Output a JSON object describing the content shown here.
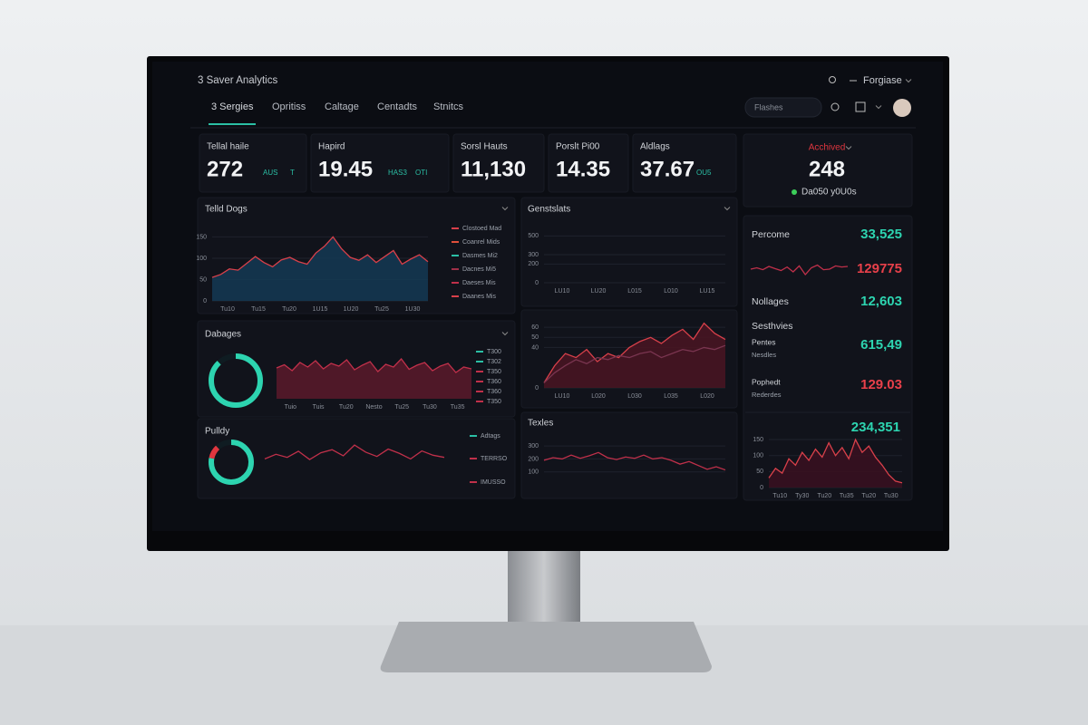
{
  "header": {
    "title": "3 Saver Analytics",
    "user_menu": "Forgiase",
    "search_placeholder": "Flashes"
  },
  "nav": {
    "tabs": [
      "3 Sergies",
      "Opritiss",
      "Caltage",
      "Centadts",
      "Stnitcs"
    ]
  },
  "kpis": [
    {
      "label": "Tellal haile",
      "value": "272",
      "notes": [
        "AUS",
        "T"
      ]
    },
    {
      "label": "Hapird",
      "value": "19.45",
      "notes": [
        "HAS3",
        "OTI"
      ]
    },
    {
      "label": "Sorsl Hauts",
      "value": "11,130",
      "notes": []
    },
    {
      "label": "Porslt Pi00",
      "value": "14.35",
      "notes": []
    },
    {
      "label": "Aldlags",
      "value": "37.67",
      "notes": [
        "OU5"
      ]
    }
  ],
  "highlight": {
    "label": "Acchived",
    "value": "248",
    "note": "Da050 y0U0s"
  },
  "panels": {
    "telld": {
      "title": "Telld Dogs",
      "ylim": [
        0,
        170
      ],
      "yticks": [
        150,
        100,
        50,
        0
      ],
      "xlabels": [
        "Tu10",
        "Tu15",
        "Tu20",
        "1U15",
        "1U20",
        "Tu25",
        "1U30"
      ],
      "series": [
        {
          "color": "#d8404a",
          "fill": "#143954",
          "values": [
            55,
            62,
            75,
            72,
            88,
            104,
            90,
            80,
            96,
            102,
            92,
            86,
            112,
            128,
            150,
            122,
            102,
            95,
            108,
            90,
            104,
            118,
            86,
            98,
            108,
            92
          ]
        }
      ],
      "legend": [
        {
          "name": "Clostoed Mad",
          "color": "#d8404a"
        },
        {
          "name": "Coanrel Mids",
          "color": "#e0503a"
        },
        {
          "name": "Dasmes Mi2",
          "color": "#2bbfa5"
        },
        {
          "name": "Dacnes Mi5",
          "color": "#a03048"
        },
        {
          "name": "Daeses Mis",
          "color": "#c0304a"
        },
        {
          "name": "Daanes Mis",
          "color": "#d8404a"
        }
      ]
    },
    "dabages": {
      "title": "Dabages",
      "donut": {
        "values": [
          88,
          12
        ],
        "colors": [
          "#2dd4b0",
          "#0f1c22"
        ]
      },
      "ylim": [
        0,
        100
      ],
      "series": [
        {
          "color": "#c0304a",
          "fill": "#5a1a2a",
          "values": [
            68,
            75,
            62,
            80,
            70,
            84,
            66,
            78,
            72,
            86,
            64,
            74,
            82,
            60,
            76,
            70,
            88,
            65,
            74,
            80,
            62,
            72,
            78,
            58,
            70,
            66
          ]
        }
      ],
      "xlabels": [
        "Tuio",
        "Tuis",
        "Tu20",
        "Nesto",
        "Tu25",
        "Tu30",
        "Tu35"
      ],
      "legend": [
        {
          "name": "T300",
          "color": "#2bbfa5"
        },
        {
          "name": "T302",
          "color": "#2bbfa5"
        },
        {
          "name": "T350",
          "color": "#c0304a"
        },
        {
          "name": "T360",
          "color": "#c0304a"
        },
        {
          "name": "T360",
          "color": "#c0304a"
        },
        {
          "name": "T350",
          "color": "#c0304a"
        }
      ]
    },
    "pulldy": {
      "title": "Pulldy",
      "donut": {
        "values": [
          78,
          10,
          12
        ],
        "colors": [
          "#2dd4b0",
          "#e0363f",
          "#0f1c22"
        ]
      },
      "ylim": [
        0,
        100
      ],
      "series": [
        {
          "color": "#c0304a",
          "values": [
            40,
            55,
            45,
            65,
            38,
            60,
            70,
            50,
            85,
            62,
            48,
            72,
            58,
            40,
            66,
            52,
            45
          ]
        }
      ],
      "legend": [
        {
          "name": "Adtags",
          "color": "#2bbfa5"
        },
        {
          "name": "TERRSO",
          "color": "#c0304a"
        },
        {
          "name": "IMUSSO",
          "color": "#c0304a"
        }
      ]
    },
    "genst": {
      "title": "Genstslats",
      "ylim": [
        0,
        600
      ],
      "yticks": [
        500,
        300,
        200,
        0
      ],
      "xlabels": [
        "LU10",
        "LU20",
        "L015",
        "L010",
        "LU15"
      ],
      "series": []
    },
    "mid": {
      "ylim": [
        0,
        70
      ],
      "yticks": [
        60,
        50,
        40,
        0
      ],
      "xlabels": [
        "LU10",
        "L020",
        "L030",
        "L035",
        "L020"
      ],
      "series": [
        {
          "color": "#d8404a",
          "fill": "#4a1522",
          "values": [
            5,
            22,
            34,
            30,
            38,
            26,
            34,
            30,
            40,
            46,
            50,
            44,
            52,
            58,
            48,
            64,
            54,
            48
          ]
        },
        {
          "color": "#7a3550",
          "values": [
            5,
            15,
            22,
            28,
            24,
            30,
            28,
            32,
            30,
            34,
            36,
            30,
            34,
            38,
            36,
            40,
            38,
            42
          ]
        }
      ]
    },
    "texles": {
      "title": "Texles",
      "ylim": [
        0,
        350
      ],
      "yticks": [
        300,
        200,
        100
      ],
      "xlabels": [],
      "series": [
        {
          "color": "#c0304a",
          "values": [
            190,
            210,
            200,
            230,
            205,
            225,
            250,
            210,
            195,
            215,
            205,
            230,
            200,
            210,
            190,
            160,
            180,
            150,
            120,
            140,
            115
          ]
        }
      ]
    },
    "right": {
      "rows": [
        {
          "label": "Percome",
          "value": "33,525"
        },
        {
          "label": "",
          "value": "129775"
        },
        {
          "label": "Nollages",
          "value": "12,603"
        },
        {
          "label": "Sesthvies",
          "value": ""
        },
        {
          "label": "Pentes",
          "sub": "Nesdles",
          "value": "615,49"
        },
        {
          "label": "Pophedt",
          "sub": "Rederdes",
          "value": "129.03"
        }
      ],
      "spark": {
        "ylim": [
          0,
          100
        ],
        "color": "#c0304a",
        "values": [
          50,
          55,
          48,
          60,
          52,
          45,
          58,
          40,
          62,
          30,
          55,
          65,
          48,
          50,
          62,
          58,
          60
        ]
      },
      "total": "234,351",
      "chart": {
        "ylim": [
          0,
          170
        ],
        "yticks": [
          150,
          100,
          50,
          0
        ],
        "xlabels": [
          "Tu10",
          "Ty30",
          "Tu20",
          "Tu35",
          "Tu20",
          "Tu30"
        ],
        "series": [
          {
            "color": "#d8404a",
            "fill": "#3a1020",
            "values": [
              30,
              60,
              45,
              90,
              70,
              110,
              85,
              120,
              95,
              140,
              100,
              125,
              90,
              150,
              110,
              130,
              95,
              70,
              40,
              20,
              15
            ]
          }
        ]
      }
    }
  }
}
